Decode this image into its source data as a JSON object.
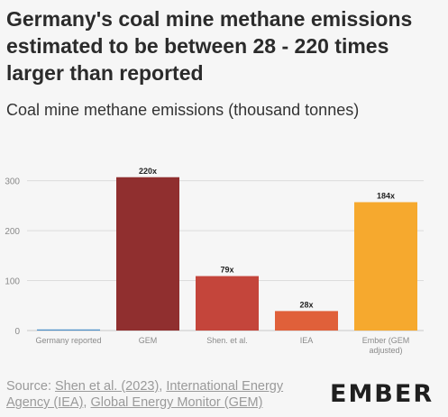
{
  "title": "Germany's coal mine methane emissions estimated to be between 28 - 220 times larger than reported",
  "subtitle": "Coal mine methane emissions (thousand tonnes)",
  "source": {
    "prefix": "Source: ",
    "links": [
      "Shen et al. (2023)",
      "International Energy Agency (IEA)",
      "Global Energy Monitor (GEM)"
    ],
    "separators": [
      ", ",
      ", "
    ]
  },
  "logo": "EMBER",
  "colors": {
    "background": "#f6f6f6",
    "grid": "#dcdcdc",
    "tick_text": "#8a8a8a"
  },
  "chart_data": {
    "type": "bar",
    "categories": [
      "Germany reported",
      "GEM",
      "Shen. et al.",
      "IEA",
      "Ember (GEM adjusted)"
    ],
    "category_lines": [
      [
        "Germany reported"
      ],
      [
        "GEM"
      ],
      [
        "Shen. et al."
      ],
      [
        "IEA"
      ],
      [
        "Ember (GEM",
        "adjusted)"
      ]
    ],
    "values": [
      1.4,
      307,
      109,
      39,
      257
    ],
    "data_labels": [
      "",
      "220x",
      "79x",
      "28x",
      "184x"
    ],
    "bar_colors": [
      "#4a8fc8",
      "#902f2f",
      "#c4453b",
      "#e0603a",
      "#f6a92e"
    ],
    "yticks": [
      0,
      100,
      200,
      300
    ],
    "ylim": [
      0,
      330
    ],
    "grid": true
  }
}
